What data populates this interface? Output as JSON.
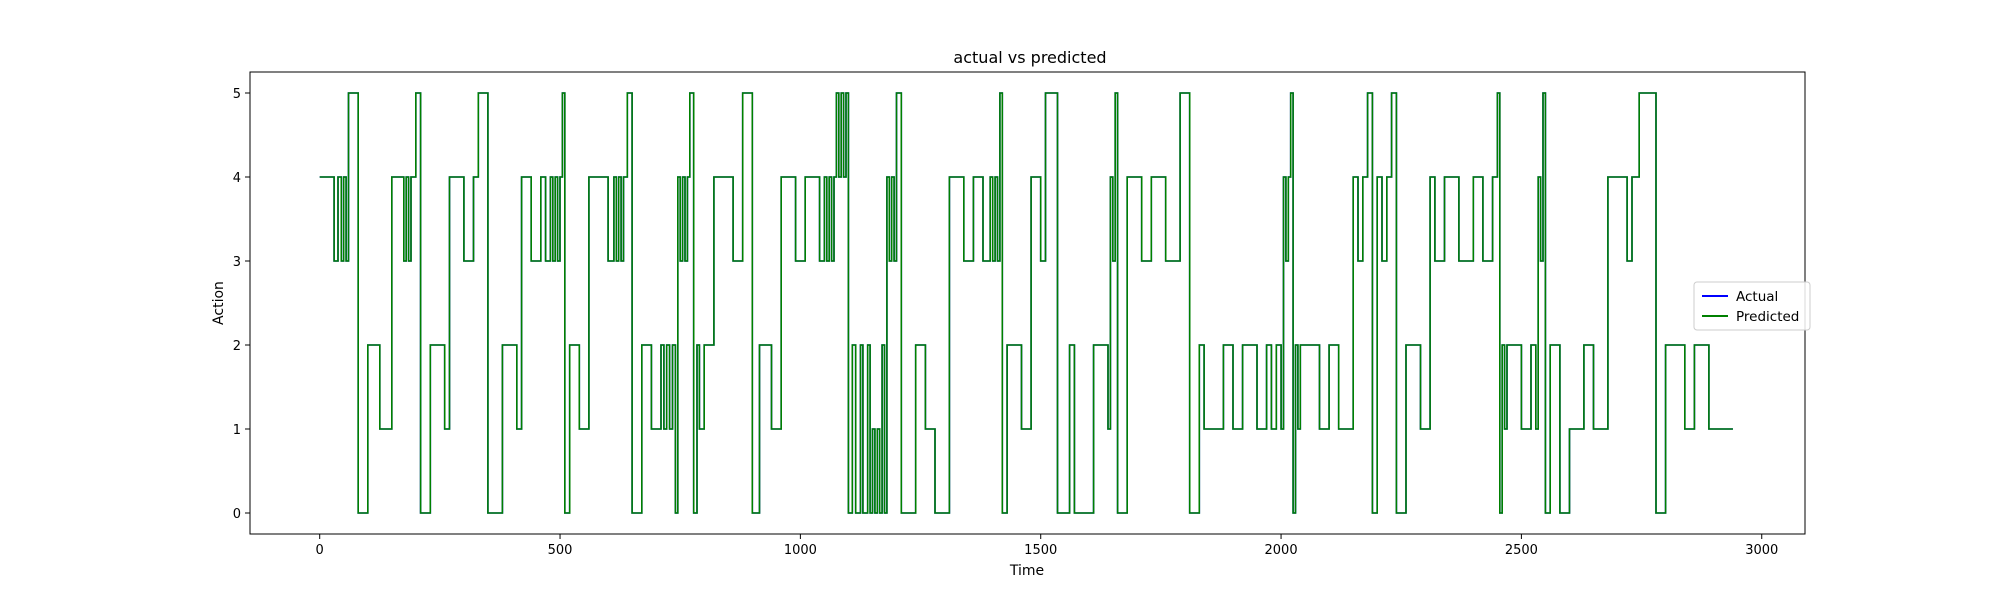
{
  "chart_data": {
    "type": "line",
    "title": "actual vs predicted",
    "xlabel": "Time",
    "ylabel": "Action",
    "xlim": [
      -145,
      3090
    ],
    "ylim": [
      -0.25,
      5.25
    ],
    "xticks": [
      0,
      500,
      1000,
      1500,
      2000,
      2500,
      3000
    ],
    "yticks": [
      0,
      1,
      2,
      3,
      4,
      5
    ],
    "grid": false,
    "legend_position": "center-right",
    "series": [
      {
        "name": "Actual",
        "color": "#0000ff",
        "step_x": [
          0,
          30,
          38,
          45,
          50,
          55,
          60,
          80,
          100,
          125,
          150,
          175,
          180,
          185,
          190,
          200,
          210,
          230,
          260,
          270,
          300,
          320,
          330,
          350,
          380,
          410,
          420,
          440,
          460,
          470,
          480,
          485,
          490,
          495,
          500,
          505,
          510,
          520,
          540,
          560,
          600,
          612,
          617,
          622,
          627,
          632,
          640,
          650,
          670,
          690,
          710,
          716,
          722,
          728,
          734,
          740,
          745,
          750,
          755,
          760,
          765,
          770,
          778,
          785,
          790,
          800,
          820,
          860,
          880,
          900,
          915,
          940,
          960,
          990,
          1010,
          1040,
          1050,
          1055,
          1060,
          1065,
          1070,
          1075,
          1080,
          1085,
          1090,
          1095,
          1100,
          1108,
          1115,
          1125,
          1130,
          1140,
          1145,
          1150,
          1155,
          1160,
          1165,
          1170,
          1175,
          1180,
          1185,
          1190,
          1195,
          1200,
          1210,
          1240,
          1260,
          1280,
          1310,
          1340,
          1360,
          1380,
          1395,
          1400,
          1405,
          1410,
          1415,
          1420,
          1430,
          1460,
          1480,
          1500,
          1510,
          1535,
          1560,
          1570,
          1610,
          1640,
          1645,
          1650,
          1655,
          1660,
          1680,
          1710,
          1730,
          1760,
          1790,
          1810,
          1830,
          1840,
          1880,
          1900,
          1920,
          1950,
          1970,
          1980,
          1990,
          2000,
          2005,
          2010,
          2015,
          2020,
          2025,
          2030,
          2035,
          2040,
          2080,
          2100,
          2120,
          2150,
          2160,
          2170,
          2180,
          2190,
          2200,
          2210,
          2220,
          2230,
          2240,
          2260,
          2290,
          2310,
          2320,
          2340,
          2370,
          2400,
          2420,
          2440,
          2450,
          2455,
          2460,
          2465,
          2470,
          2500,
          2520,
          2530,
          2535,
          2540,
          2545,
          2550,
          2560,
          2580,
          2600,
          2630,
          2650,
          2680,
          2720,
          2730,
          2745,
          2780,
          2800,
          2840,
          2860,
          2890,
          2930,
          2940,
          2950
        ],
        "step_y": [
          4,
          3,
          4,
          3,
          4,
          3,
          5,
          0,
          2,
          1,
          4,
          3,
          4,
          3,
          4,
          5,
          0,
          2,
          1,
          4,
          3,
          4,
          5,
          0,
          2,
          1,
          4,
          3,
          4,
          3,
          4,
          3,
          4,
          3,
          4,
          5,
          0,
          2,
          1,
          4,
          3,
          4,
          3,
          4,
          3,
          4,
          5,
          0,
          2,
          1,
          2,
          1,
          2,
          1,
          2,
          0,
          4,
          3,
          4,
          3,
          4,
          5,
          0,
          2,
          1,
          2,
          4,
          3,
          5,
          0,
          2,
          1,
          4,
          3,
          4,
          3,
          4,
          3,
          4,
          3,
          4,
          5,
          4,
          5,
          4,
          5,
          0,
          2,
          0,
          2,
          0,
          2,
          0,
          1,
          0,
          1,
          0,
          2,
          0,
          4,
          3,
          4,
          3,
          5,
          0,
          2,
          1,
          0,
          4,
          3,
          4,
          3,
          4,
          3,
          4,
          3,
          5,
          0,
          2,
          1,
          4,
          3,
          5,
          0,
          2,
          0,
          2,
          1,
          4,
          3,
          5,
          0,
          4,
          3,
          4,
          3,
          5,
          0,
          2,
          1,
          2,
          1,
          2,
          1,
          2,
          1,
          2,
          1,
          4,
          3,
          4,
          5,
          0,
          2,
          1,
          2,
          1,
          2,
          1,
          4,
          3,
          4,
          5,
          0,
          4,
          3,
          4,
          5,
          0,
          2,
          1,
          4,
          3,
          4,
          3,
          4,
          3,
          4,
          5,
          0,
          2,
          1,
          2,
          1,
          2,
          1,
          4,
          3,
          5,
          0,
          2,
          0,
          1,
          2,
          1,
          4,
          3,
          4,
          5,
          0,
          2,
          1,
          2,
          1,
          1
        ]
      },
      {
        "name": "Predicted",
        "color": "#008000",
        "step_x": [
          0,
          30,
          38,
          45,
          50,
          55,
          60,
          80,
          100,
          125,
          150,
          175,
          180,
          185,
          190,
          200,
          210,
          230,
          260,
          270,
          300,
          320,
          330,
          350,
          380,
          410,
          420,
          440,
          460,
          470,
          480,
          485,
          490,
          495,
          500,
          505,
          510,
          520,
          540,
          560,
          600,
          612,
          617,
          622,
          627,
          632,
          640,
          650,
          670,
          690,
          710,
          716,
          722,
          728,
          734,
          740,
          745,
          750,
          755,
          760,
          765,
          770,
          778,
          785,
          790,
          800,
          820,
          860,
          880,
          900,
          915,
          940,
          960,
          990,
          1010,
          1040,
          1050,
          1055,
          1060,
          1065,
          1070,
          1075,
          1080,
          1085,
          1090,
          1095,
          1100,
          1108,
          1115,
          1125,
          1130,
          1140,
          1145,
          1150,
          1155,
          1160,
          1165,
          1170,
          1175,
          1180,
          1185,
          1190,
          1195,
          1200,
          1210,
          1240,
          1260,
          1280,
          1310,
          1340,
          1360,
          1380,
          1395,
          1400,
          1405,
          1410,
          1415,
          1420,
          1430,
          1460,
          1480,
          1500,
          1510,
          1535,
          1560,
          1570,
          1610,
          1640,
          1645,
          1650,
          1655,
          1660,
          1680,
          1710,
          1730,
          1760,
          1790,
          1810,
          1830,
          1840,
          1880,
          1900,
          1920,
          1950,
          1970,
          1980,
          1990,
          2000,
          2005,
          2010,
          2015,
          2020,
          2025,
          2030,
          2035,
          2040,
          2080,
          2100,
          2120,
          2150,
          2160,
          2170,
          2180,
          2190,
          2200,
          2210,
          2220,
          2230,
          2240,
          2260,
          2290,
          2310,
          2320,
          2340,
          2370,
          2400,
          2420,
          2440,
          2450,
          2455,
          2460,
          2465,
          2470,
          2500,
          2520,
          2530,
          2535,
          2540,
          2545,
          2550,
          2560,
          2580,
          2600,
          2630,
          2650,
          2680,
          2720,
          2730,
          2745,
          2780,
          2800,
          2840,
          2860,
          2890,
          2930,
          2940,
          2950
        ],
        "step_y": [
          4,
          3,
          4,
          3,
          4,
          3,
          5,
          0,
          2,
          1,
          4,
          3,
          4,
          3,
          4,
          5,
          0,
          2,
          1,
          4,
          3,
          4,
          5,
          0,
          2,
          1,
          4,
          3,
          4,
          3,
          4,
          3,
          4,
          3,
          4,
          5,
          0,
          2,
          1,
          4,
          3,
          4,
          3,
          4,
          3,
          4,
          5,
          0,
          2,
          1,
          2,
          1,
          2,
          1,
          2,
          0,
          4,
          3,
          4,
          3,
          4,
          5,
          0,
          2,
          1,
          2,
          4,
          3,
          5,
          0,
          2,
          1,
          4,
          3,
          4,
          3,
          4,
          3,
          4,
          3,
          4,
          5,
          4,
          5,
          4,
          5,
          0,
          2,
          0,
          2,
          0,
          2,
          0,
          1,
          0,
          1,
          0,
          2,
          0,
          4,
          3,
          4,
          3,
          5,
          0,
          2,
          1,
          0,
          4,
          3,
          4,
          3,
          4,
          3,
          4,
          3,
          5,
          0,
          2,
          1,
          4,
          3,
          5,
          0,
          2,
          0,
          2,
          1,
          4,
          3,
          5,
          0,
          4,
          3,
          4,
          3,
          5,
          0,
          2,
          1,
          2,
          1,
          2,
          1,
          2,
          1,
          2,
          1,
          4,
          3,
          4,
          5,
          0,
          2,
          1,
          2,
          1,
          2,
          1,
          4,
          3,
          4,
          5,
          0,
          4,
          3,
          4,
          5,
          0,
          2,
          1,
          4,
          3,
          4,
          3,
          4,
          3,
          4,
          5,
          0,
          2,
          1,
          2,
          1,
          2,
          1,
          4,
          3,
          5,
          0,
          2,
          0,
          1,
          2,
          1,
          4,
          3,
          4,
          5,
          0,
          2,
          1,
          2,
          1,
          1
        ]
      }
    ]
  }
}
